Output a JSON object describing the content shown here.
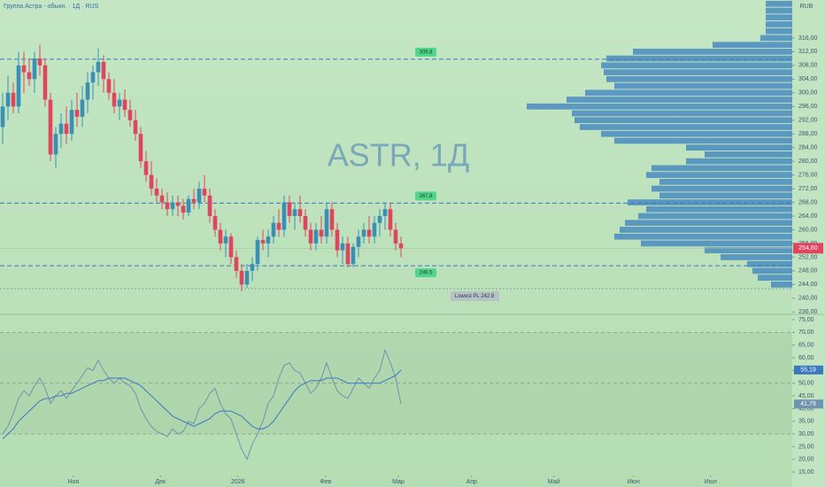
{
  "chart_data": [
    {
      "type": "candlestick",
      "title": "Группа Астра - обыкн. · 1Д · RUS",
      "watermark": "ASTR, 1Д",
      "currency": "RUB",
      "up_color": "#3a8fb5",
      "down_color": "#e0455e",
      "open": [
        290,
        296,
        300,
        296,
        308,
        306,
        304,
        310,
        308,
        298,
        282,
        288,
        291,
        288,
        295,
        293,
        298,
        303,
        306,
        309,
        304,
        300,
        296,
        298,
        295,
        292,
        288,
        280,
        276,
        272,
        270,
        268,
        266,
        268,
        267,
        265,
        269,
        268,
        272,
        270,
        264,
        260,
        256,
        258,
        252,
        248,
        244,
        248,
        250,
        257,
        256,
        258,
        262,
        260,
        268,
        264,
        266,
        264,
        260,
        256,
        260,
        258,
        266,
        260,
        254,
        256,
        250,
        255,
        258,
        260,
        258,
        262,
        264,
        266,
        260,
        256
      ],
      "high": [
        300,
        305,
        303,
        312,
        312,
        310,
        312,
        314,
        310,
        300,
        290,
        294,
        296,
        298,
        300,
        302,
        306,
        308,
        313,
        311,
        306,
        304,
        300,
        301,
        298,
        295,
        290,
        283,
        280,
        275,
        272,
        271,
        270,
        270,
        269,
        270,
        272,
        274,
        276,
        272,
        266,
        262,
        260,
        259,
        254,
        250,
        250,
        252,
        258,
        260,
        260,
        264,
        266,
        270,
        270,
        268,
        270,
        266,
        262,
        262,
        264,
        268,
        268,
        262,
        258,
        258,
        256,
        260,
        262,
        264,
        264,
        266,
        268,
        268,
        262,
        258
      ],
      "low": [
        285,
        292,
        294,
        294,
        300,
        302,
        300,
        305,
        296,
        280,
        278,
        284,
        285,
        286,
        290,
        290,
        294,
        298,
        302,
        300,
        298,
        294,
        292,
        293,
        290,
        286,
        278,
        274,
        270,
        268,
        266,
        264,
        264,
        264,
        263,
        264,
        266,
        266,
        268,
        262,
        258,
        254,
        252,
        250,
        246,
        242,
        243,
        245,
        248,
        254,
        252,
        256,
        258,
        258,
        262,
        260,
        262,
        258,
        254,
        254,
        256,
        256,
        258,
        252,
        250,
        249,
        249,
        252,
        256,
        256,
        256,
        258,
        260,
        258,
        254,
        252
      ],
      "close": [
        296,
        300,
        296,
        308,
        306,
        304,
        310,
        308,
        298,
        282,
        288,
        291,
        288,
        295,
        293,
        298,
        303,
        306,
        309,
        304,
        300,
        296,
        298,
        295,
        292,
        288,
        280,
        276,
        272,
        270,
        268,
        266,
        268,
        267,
        265,
        269,
        268,
        272,
        270,
        264,
        260,
        256,
        258,
        252,
        248,
        244,
        248,
        250,
        257,
        256,
        258,
        262,
        260,
        268,
        264,
        266,
        264,
        260,
        256,
        260,
        258,
        266,
        260,
        254,
        256,
        250,
        255,
        258,
        260,
        258,
        262,
        264,
        266,
        260,
        256,
        254.6
      ],
      "xlim": [
        -0.5,
        148.67
      ],
      "xticks": [
        {
          "value": 13.3,
          "label": "Ноя"
        },
        {
          "value": 29.7,
          "label": "Дек"
        },
        {
          "value": 44.3,
          "label": "2026"
        },
        {
          "value": 60.8,
          "label": "Фев"
        },
        {
          "value": 74.5,
          "label": "Мар"
        },
        {
          "value": 88.3,
          "label": "Апр"
        },
        {
          "value": 103.8,
          "label": "Май"
        },
        {
          "value": 118.8,
          "label": "Июн"
        },
        {
          "value": 133.3,
          "label": "Июл"
        }
      ],
      "ylim": [
        235.3,
        327.1
      ],
      "yticks": [
        {
          "value": 236,
          "label": "236,00"
        },
        {
          "value": 240,
          "label": "240,00"
        },
        {
          "value": 244,
          "label": "244,00"
        },
        {
          "value": 248,
          "label": "248,00"
        },
        {
          "value": 252,
          "label": "252,00"
        },
        {
          "value": 256,
          "label": "256,00"
        },
        {
          "value": 260,
          "label": "260,00"
        },
        {
          "value": 264,
          "label": "264,00"
        },
        {
          "value": 268,
          "label": "268,00"
        },
        {
          "value": 272,
          "label": "272,00"
        },
        {
          "value": 276,
          "label": "276,00"
        },
        {
          "value": 280,
          "label": "280,00"
        },
        {
          "value": 284,
          "label": "284,00"
        },
        {
          "value": 288,
          "label": "288,00"
        },
        {
          "value": 292,
          "label": "292,00"
        },
        {
          "value": 296,
          "label": "296,00"
        },
        {
          "value": 300,
          "label": "300,00"
        },
        {
          "value": 304,
          "label": "304,00"
        },
        {
          "value": 308,
          "label": "308,00"
        },
        {
          "value": 312,
          "label": "312,00"
        },
        {
          "value": 316,
          "label": "316,00"
        }
      ],
      "levels": [
        {
          "value": 309.8,
          "label": "309.8"
        },
        {
          "value": 267.8,
          "label": "267.8"
        },
        {
          "value": 249.5,
          "label": "249.5"
        }
      ],
      "lowest": {
        "value": 242.8,
        "label": "Lowest PL 242.8"
      },
      "last_price": {
        "value": 254.6,
        "label": "254,60"
      },
      "volume_profile": {
        "color": "#3a7fc0",
        "prices": [
          326,
          324,
          322,
          320,
          318,
          316,
          314,
          312,
          310,
          308,
          306,
          304,
          302,
          300,
          298,
          296,
          294,
          292,
          290,
          288,
          286,
          284,
          282,
          280,
          278,
          276,
          274,
          272,
          270,
          268,
          266,
          264,
          262,
          260,
          258,
          256,
          254,
          252,
          250,
          248,
          246,
          244
        ],
        "values": [
          10,
          10,
          10,
          10,
          10,
          12,
          30,
          60,
          70,
          72,
          71,
          70,
          67,
          78,
          85,
          100,
          83,
          82,
          80,
          72,
          67,
          40,
          33,
          40,
          53,
          55,
          50,
          53,
          50,
          62,
          55,
          58,
          63,
          65,
          67,
          57,
          33,
          27,
          17,
          15,
          13,
          8
        ]
      }
    },
    {
      "type": "line",
      "ylim": [
        12.6,
        77.1
      ],
      "yticks": [
        {
          "value": 15,
          "label": "15,00"
        },
        {
          "value": 20,
          "label": "20,00"
        },
        {
          "value": 25,
          "label": "25,00"
        },
        {
          "value": 30,
          "label": "30,00"
        },
        {
          "value": 35,
          "label": "35,00"
        },
        {
          "value": 40,
          "label": "40,00"
        },
        {
          "value": 45,
          "label": "45,00"
        },
        {
          "value": 50,
          "label": "50,00"
        },
        {
          "value": 55,
          "label": "55,00"
        },
        {
          "value": 60,
          "label": "60,00"
        },
        {
          "value": 65,
          "label": "65,00"
        },
        {
          "value": 70,
          "label": "70,00"
        },
        {
          "value": 75,
          "label": "75,00"
        }
      ],
      "levels": [
        70,
        50,
        30
      ],
      "series": [
        {
          "color": "#6f93b0",
          "values": [
            30,
            33,
            38,
            44,
            47,
            45,
            49,
            52,
            48,
            42,
            45,
            47,
            44,
            47,
            50,
            53,
            56,
            55,
            59,
            55,
            52,
            50,
            52,
            50,
            49,
            46,
            40,
            36,
            33,
            31,
            30,
            29,
            32,
            30,
            31,
            35,
            34,
            40,
            42,
            46,
            48,
            42,
            38,
            36,
            30,
            24,
            20,
            26,
            30,
            35,
            42,
            45,
            52,
            57,
            58,
            55,
            54,
            50,
            46,
            48,
            52,
            58,
            52,
            47,
            45,
            44,
            48,
            52,
            50,
            48,
            52,
            55,
            63,
            58,
            52,
            41.79
          ],
          "last_label": {
            "value": 41.79,
            "label": "41,79"
          }
        },
        {
          "color": "#3b78c0",
          "values": [
            28,
            30,
            32,
            35,
            37,
            39,
            41,
            43,
            44,
            44,
            45,
            45,
            46,
            46,
            47,
            48,
            49,
            50,
            51,
            51,
            52,
            52,
            52,
            52,
            51,
            50,
            49,
            47,
            45,
            43,
            41,
            39,
            37,
            36,
            35,
            34,
            33,
            34,
            35,
            36,
            38,
            39,
            39,
            39,
            38,
            37,
            35,
            33,
            32,
            32,
            33,
            35,
            38,
            41,
            44,
            47,
            49,
            50,
            51,
            51,
            51,
            52,
            52,
            52,
            51,
            50,
            50,
            50,
            50,
            50,
            50,
            50,
            51,
            52,
            53,
            55.19
          ],
          "last_label": {
            "value": 55.19,
            "label": "55,19"
          }
        }
      ]
    }
  ]
}
